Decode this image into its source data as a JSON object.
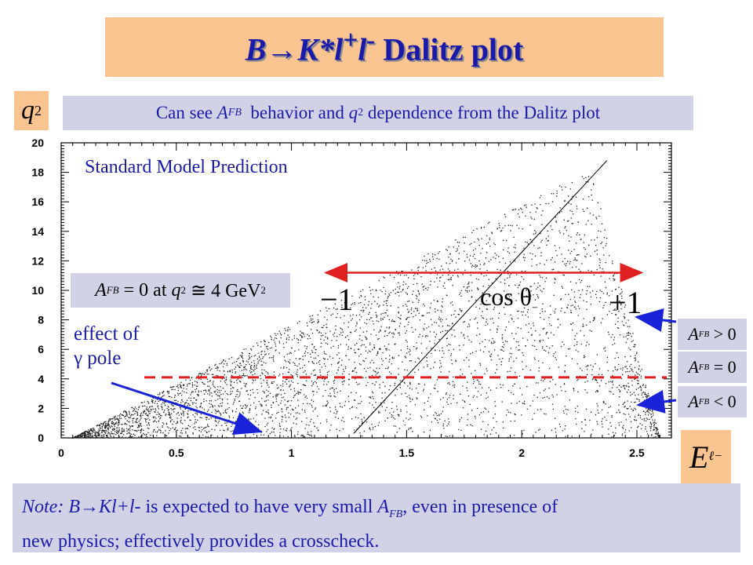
{
  "title": {
    "prefix": "B",
    "arrow": "→",
    "particle": "K*l",
    "sup_plus": "+",
    "lepton": "l",
    "sup_minus": "-",
    "suffix": "Dalitz plot"
  },
  "y_axis_symbol": {
    "base": "q",
    "exp": "2"
  },
  "caption": {
    "part1": "Can see ",
    "afb_base": "A",
    "afb_sub": "FB",
    "part2": "  behavior and ",
    "q_base": "q",
    "q_exp": "2",
    "part3": " dependence from the Dalitz plot"
  },
  "annotations": {
    "sm_prediction": "Standard Model Prediction",
    "afb_zero_eq": {
      "afb": "A",
      "afb_sub": "FB",
      "eq": " = 0 at ",
      "q": "q",
      "q_exp": "2",
      "rest": " ≅ 4 GeV",
      "gev_exp": "2"
    },
    "minus_one": "−1",
    "cos_theta": {
      "text": "cos θ",
      "sub": "−"
    },
    "plus_one": "+1",
    "effect_line1": "effect of",
    "effect_line2": "γ pole"
  },
  "legend": [
    {
      "afb": "A",
      "sub": "FB",
      "rel": " > 0"
    },
    {
      "afb": "A",
      "sub": "FB",
      "rel": " = 0"
    },
    {
      "afb": "A",
      "sub": "FB",
      "rel": " < 0"
    }
  ],
  "x_axis_symbol": {
    "base": "E",
    "sub": "ℓ−"
  },
  "note": {
    "note_label": "Note: B",
    "arrow": "→",
    "decay": "Kl+l-",
    "part1": " is expected to have very small ",
    "afb_base": "A",
    "afb_sub": "FB",
    "part2": ", even in presence of",
    "line2": "new physics; effectively provides a crosscheck."
  },
  "chart_data": {
    "type": "scatter",
    "xlim": [
      0,
      2.65
    ],
    "ylim": [
      0,
      20
    ],
    "x_ticks": [
      0,
      0.5,
      1,
      1.5,
      2,
      2.5
    ],
    "x_tick_labels": [
      "0",
      "0.5",
      "1",
      "1.5",
      "2",
      "2.5"
    ],
    "y_ticks": [
      0,
      2,
      4,
      6,
      8,
      10,
      12,
      14,
      16,
      18,
      20
    ],
    "y_tick_labels": [
      "0",
      "2",
      "4",
      "6",
      "8",
      "10",
      "12",
      "14",
      "16",
      "18",
      "20"
    ],
    "afb_zero_line": {
      "x": [
        1.27,
        2.37
      ],
      "y": [
        0.3,
        18.8
      ]
    },
    "gamma_pole_line_y": 4.1,
    "cos_range_arrow": {
      "x": [
        1.15,
        2.52
      ],
      "y": 11.2
    },
    "colors": {
      "points": "#222222",
      "afb_line": "#000000",
      "pole_line": "#e02020",
      "arrow_red": "#e02020",
      "arrow_blue": "#1a22d8"
    }
  }
}
